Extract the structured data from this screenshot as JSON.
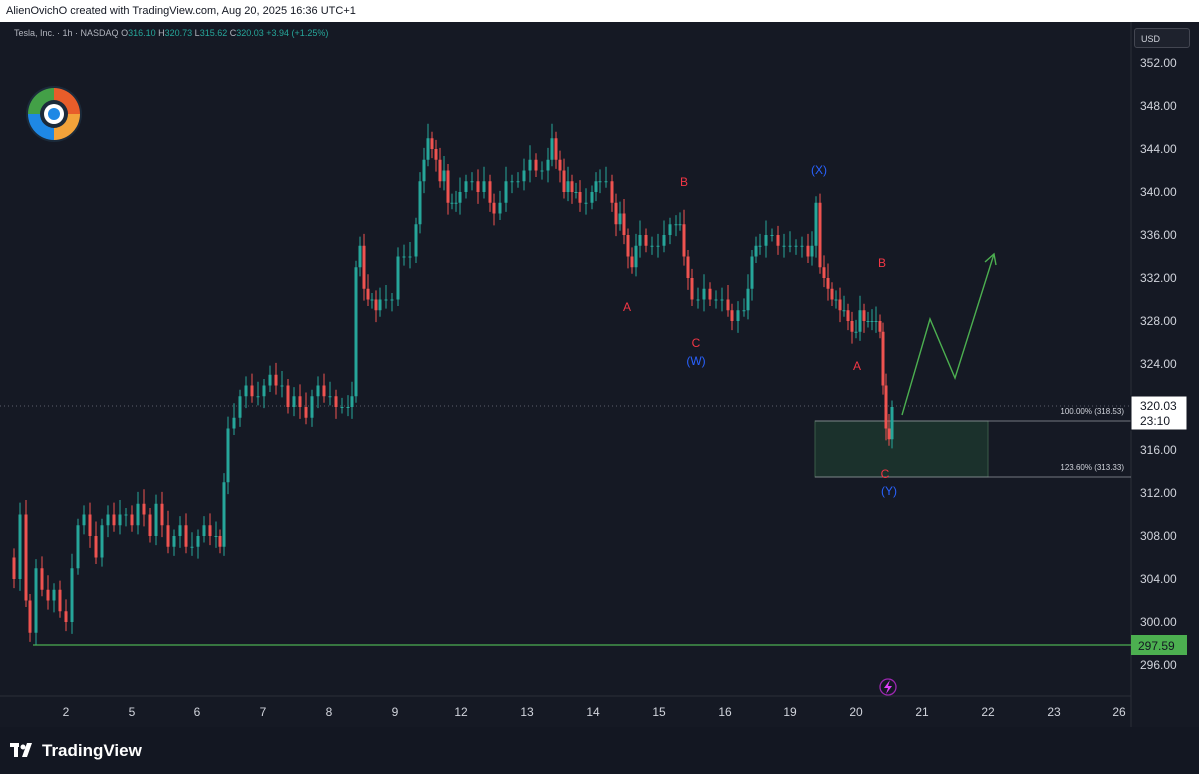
{
  "header": {
    "attribution": "AlienOvichO created with TradingView.com, Aug 20, 2025 16:36 UTC+1"
  },
  "symbol": {
    "name": "Tesla, Inc. · 1h · NASDAQ",
    "open_label": "O",
    "open": "316.10",
    "high_label": "H",
    "high": "320.73",
    "low_label": "L",
    "low": "315.62",
    "close_label": "C",
    "close": "320.03",
    "change": "+3.94 (+1.25%)"
  },
  "currency": "USD",
  "colors": {
    "up": "#26a69a",
    "down": "#ef5350",
    "wave_red": "#f23645",
    "wave_blue": "#2962ff",
    "projection": "#4caf50",
    "support": "#4caf50"
  },
  "price_axis": {
    "ticks": [
      "352.00",
      "348.00",
      "344.00",
      "340.00",
      "336.00",
      "332.00",
      "328.00",
      "324.00",
      "320.00",
      "316.00",
      "312.00",
      "308.00",
      "304.00",
      "300.00",
      "296.00"
    ],
    "last_price": "320.03",
    "countdown": "23:10",
    "support_price": "297.59"
  },
  "time_axis": {
    "ticks": [
      "2",
      "5",
      "6",
      "7",
      "8",
      "9",
      "12",
      "13",
      "14",
      "15",
      "16",
      "19",
      "20",
      "21",
      "22",
      "23",
      "26"
    ]
  },
  "fib": {
    "level_100": "100.00% (318.53)",
    "level_123": "123.60% (313.33)"
  },
  "waves": {
    "a1": "A",
    "b1": "B",
    "c1": "C",
    "w": "(W)",
    "x": "(X)",
    "a2": "A",
    "b2": "B",
    "c2": "C",
    "y": "(Y)"
  },
  "footer": {
    "brand": "TradingView"
  },
  "icons": {
    "user_logo": "swirl-logo-icon",
    "event": "lightning-icon",
    "brand_logo": "tradingview-logo-icon"
  }
}
